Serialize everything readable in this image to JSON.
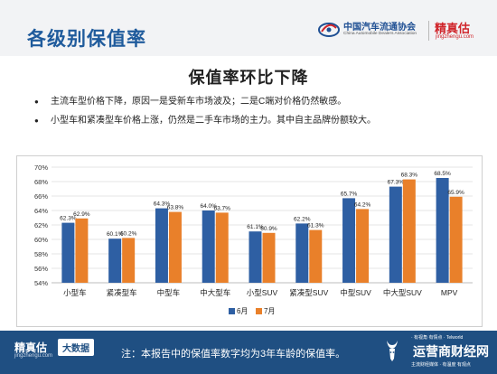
{
  "header": {
    "title": "各级别保值率",
    "assoc_name": "中国汽车流通协会",
    "assoc_en": "China Automobile Dealers Association",
    "brand_name": "精真估",
    "brand_url": "jingzhengu.com"
  },
  "section_heading": "保值率环比下降",
  "bullets": [
    "主流车型价格下降，原因一是受新车市场波及；二是C端对价格仍然敏感。",
    "小型车和紧凑型车价格上涨，仍然是二手车市场的主力。其中自主品牌份额较大。"
  ],
  "colors": {
    "series_june": "#2e5fa3",
    "series_july": "#e9802a",
    "header_blue": "#1f5b9c",
    "footer_blue": "#1f4f82",
    "brand_red": "#d0242a"
  },
  "chart_data": {
    "type": "bar",
    "categories": [
      "小型车",
      "紧凑型车",
      "中型车",
      "中大型车",
      "小型SUV",
      "紧凑型SUV",
      "中型SUV",
      "中大型SUV",
      "MPV"
    ],
    "series": [
      {
        "name": "6月",
        "values": [
          62.3,
          60.1,
          64.3,
          64.0,
          61.1,
          62.2,
          65.7,
          67.3,
          68.5
        ]
      },
      {
        "name": "7月",
        "values": [
          62.9,
          60.2,
          63.8,
          63.7,
          60.9,
          61.3,
          64.2,
          68.3,
          65.9
        ]
      }
    ],
    "data_labels": [
      [
        "62.3%",
        "60.1%",
        "64.3%",
        "64.0%",
        "61.1%",
        "62.2%",
        "65.7%",
        "67.3%",
        "68.5%"
      ],
      [
        "62.9%",
        "60.2%",
        "63.8%",
        "63.7%",
        "60.9%",
        "61.3%",
        "64.2%",
        "68.3%",
        "65.9%"
      ]
    ],
    "y_ticks": [
      54,
      56,
      58,
      60,
      62,
      64,
      66,
      68,
      70
    ],
    "y_tick_labels": [
      "54%",
      "56%",
      "58%",
      "60%",
      "62%",
      "64%",
      "66%",
      "68%",
      "70%"
    ],
    "ylim": [
      54,
      70
    ],
    "legend_position": "bottom",
    "grid": true
  },
  "footer": {
    "brand_name": "精真估",
    "brand_url": "jingzhengu.com",
    "badge": "大数据",
    "note": "注：本报告中的保值率数字均为3年车龄的保值率。"
  },
  "watermark": {
    "tagline_top": "· 有视角 有情点 · Telworld",
    "name": "运营商财经网",
    "tagline_bottom": "主流财经媒体 · 有温度 有观点"
  }
}
